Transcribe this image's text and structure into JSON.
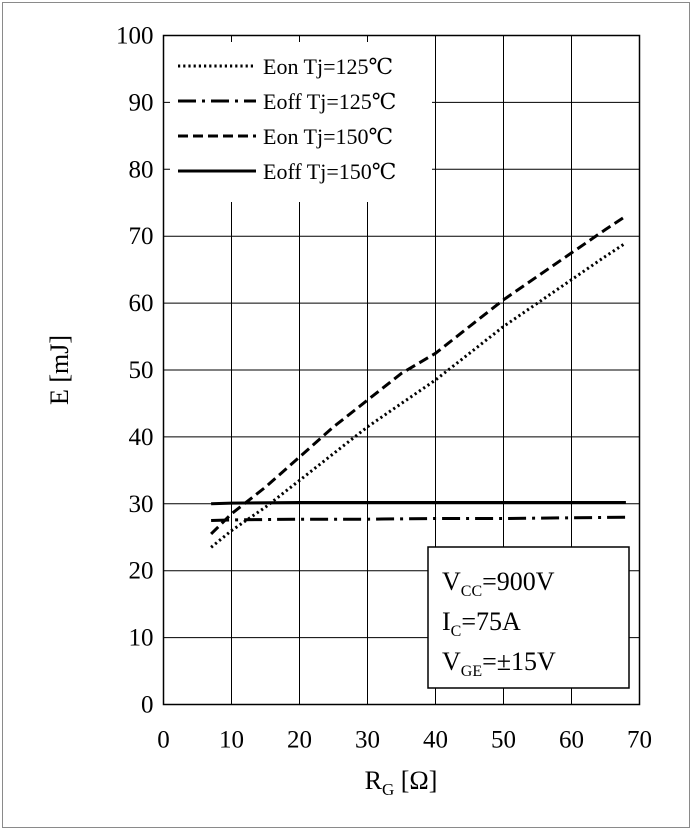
{
  "chart_data": {
    "type": "line",
    "title": "",
    "xlabel": {
      "main": "R",
      "sub": "G",
      "unit": " [Ω]"
    },
    "ylabel": "E [mJ]",
    "xlim": [
      0,
      70
    ],
    "ylim": [
      0,
      100
    ],
    "x_ticks": [
      "0",
      "10",
      "20",
      "30",
      "40",
      "50",
      "60",
      "70"
    ],
    "y_ticks": [
      "0",
      "10",
      "20",
      "30",
      "40",
      "50",
      "60",
      "70",
      "80",
      "90",
      "100"
    ],
    "grid": true,
    "legend_position": "top-left",
    "series": [
      {
        "name": "Eon Tj=125℃",
        "style": "dotted",
        "x": [
          7,
          10,
          15,
          20,
          25,
          30,
          35,
          40,
          45,
          50,
          55,
          60,
          65,
          68
        ],
        "y": [
          23.5,
          26,
          29.5,
          33.5,
          37.5,
          41.5,
          45,
          48.5,
          52.5,
          56.5,
          60,
          63.5,
          67,
          69
        ]
      },
      {
        "name": "Eoff Tj=125℃",
        "style": "dashdot",
        "x": [
          7,
          10,
          20,
          30,
          40,
          50,
          60,
          68
        ],
        "y": [
          27.5,
          27.6,
          27.7,
          27.7,
          27.8,
          27.8,
          27.9,
          28
        ]
      },
      {
        "name": "Eon Tj=150℃",
        "style": "dashed",
        "x": [
          7,
          10,
          15,
          20,
          25,
          30,
          35,
          40,
          45,
          50,
          55,
          60,
          65,
          68
        ],
        "y": [
          25.5,
          28.5,
          32.5,
          37,
          41.5,
          45.5,
          49.5,
          52.5,
          56.5,
          60.5,
          64,
          67.5,
          71,
          73
        ]
      },
      {
        "name": "Eoff Tj=150℃",
        "style": "solid",
        "x": [
          7,
          10,
          20,
          30,
          40,
          50,
          60,
          68
        ],
        "y": [
          30,
          30.1,
          30.2,
          30.2,
          30.2,
          30.2,
          30.2,
          30.2
        ]
      }
    ],
    "conditions": [
      {
        "main": "V",
        "sub": "CC",
        "rest": "=900V"
      },
      {
        "main": "I",
        "sub": "C",
        "rest": "=75A"
      },
      {
        "main": "V",
        "sub": "GE",
        "rest": "=±15V"
      }
    ]
  }
}
